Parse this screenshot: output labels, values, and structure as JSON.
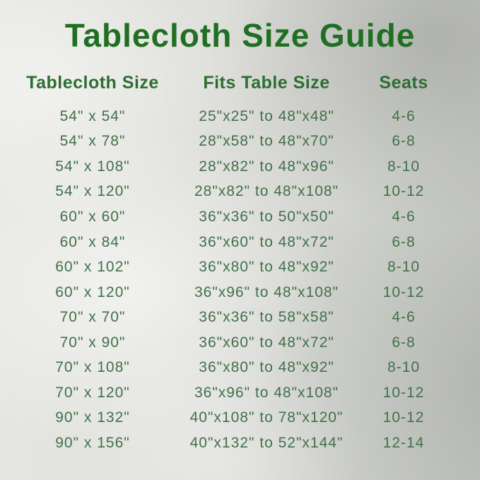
{
  "title": "Tablecloth Size Guide",
  "chart_data": {
    "type": "table",
    "title": "Tablecloth Size Guide",
    "columns": [
      "Tablecloth Size",
      "Fits Table Size",
      "Seats"
    ],
    "rows": [
      [
        "54\" x 54\"",
        "25\"x25\" to 48\"x48\"",
        "4-6"
      ],
      [
        "54\" x 78\"",
        "28\"x58\" to 48\"x70\"",
        "6-8"
      ],
      [
        "54\" x 108\"",
        "28\"x82\" to 48\"x96\"",
        "8-10"
      ],
      [
        "54\" x 120\"",
        "28\"x82\" to 48\"x108\"",
        "10-12"
      ],
      [
        "60\" x 60\"",
        "36\"x36\" to 50\"x50\"",
        "4-6"
      ],
      [
        "60\" x 84\"",
        "36\"x60\" to 48\"x72\"",
        "6-8"
      ],
      [
        "60\" x 102\"",
        "36\"x80\" to 48\"x92\"",
        "8-10"
      ],
      [
        "60\" x 120\"",
        "36\"x96\" to 48\"x108\"",
        "10-12"
      ],
      [
        "70\" x 70\"",
        "36\"x36\" to 58\"x58\"",
        "4-6"
      ],
      [
        "70\" x 90\"",
        "36\"x60\" to 48\"x72\"",
        "6-8"
      ],
      [
        "70\" x 108\"",
        "36\"x80\" to 48\"x92\"",
        "8-10"
      ],
      [
        "70\" x 120\"",
        "36\"x96\" to 48\"x108\"",
        "10-12"
      ],
      [
        "90\" x 132\"",
        "40\"x108\" to 78\"x120\"",
        "10-12"
      ],
      [
        "90\" x 156\"",
        "40\"x132\" to 52\"x144\"",
        "12-14"
      ]
    ]
  },
  "colors": {
    "title_green": "#1e6b21",
    "header_green": "#2a6a2f",
    "row_green": "#3e6c46",
    "background_silver": "#d7d8d4"
  }
}
